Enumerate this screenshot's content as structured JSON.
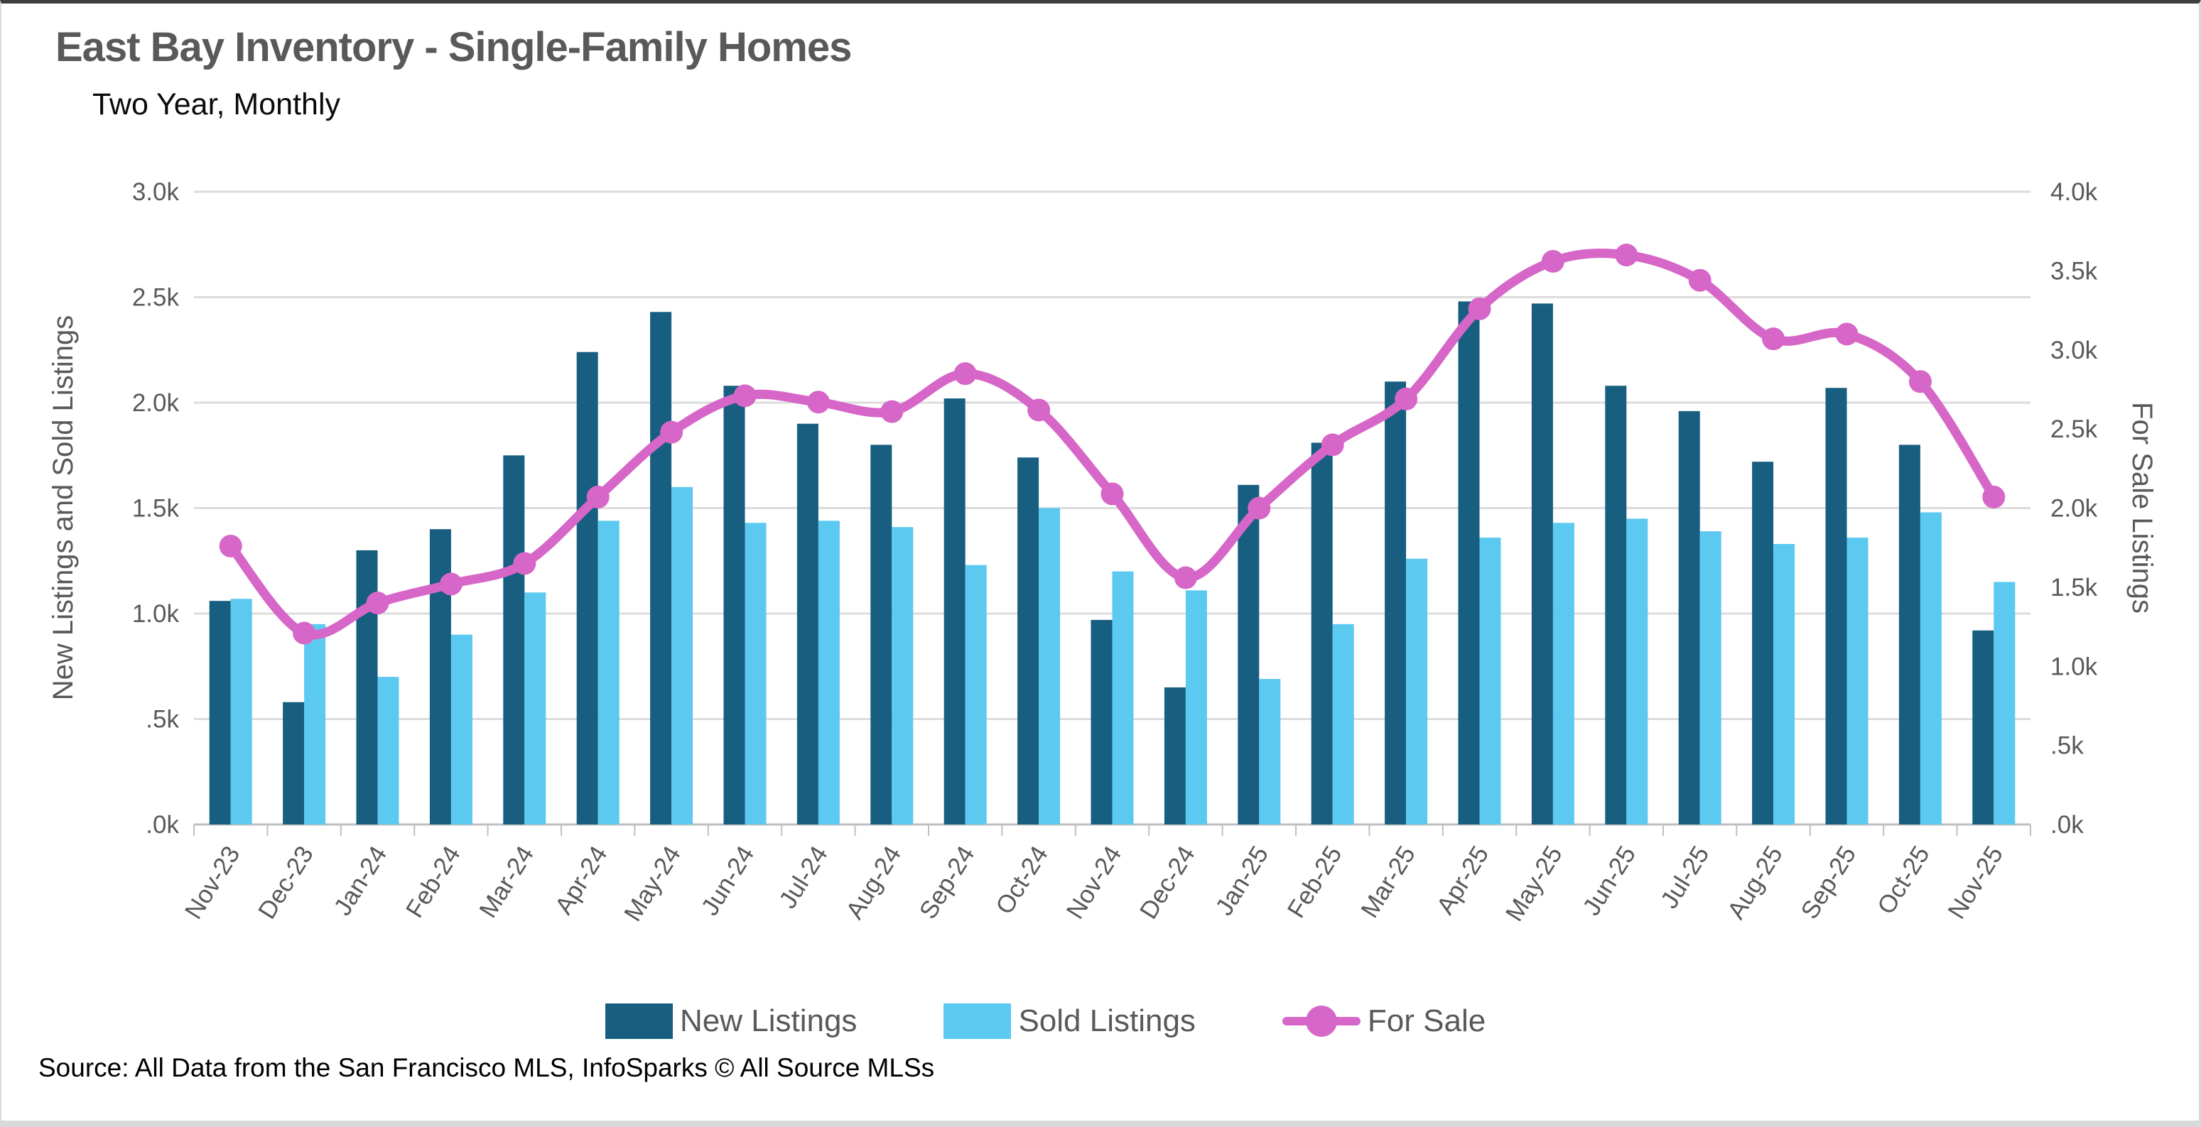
{
  "header": {
    "title": "East Bay Inventory - Single-Family Homes",
    "subtitle": "Two Year, Monthly"
  },
  "source_note": "Source: All Data from the San Francisco MLS, InfoSparks © All Source MLSs",
  "legend": {
    "position": "bottom",
    "items": [
      {
        "label": "New Listings",
        "color": "#175E80",
        "type": "bar"
      },
      {
        "label": "Sold Listings",
        "color": "#5CC9F0",
        "type": "bar"
      },
      {
        "label": "For Sale",
        "color": "#D666C8",
        "type": "line"
      }
    ]
  },
  "chart_data": {
    "type": "bar",
    "subtype": "grouped-bars-with-line",
    "title": "East Bay Inventory - Single-Family Homes",
    "subtitle": "Two Year, Monthly",
    "grid": true,
    "categories": [
      "Nov-23",
      "Dec-23",
      "Jan-24",
      "Feb-24",
      "Mar-24",
      "Apr-24",
      "May-24",
      "Jun-24",
      "Jul-24",
      "Aug-24",
      "Sep-24",
      "Oct-24",
      "Nov-24",
      "Dec-24",
      "Jan-25",
      "Feb-25",
      "Mar-25",
      "Apr-25",
      "May-25",
      "Jun-25",
      "Jul-25",
      "Aug-25",
      "Sep-25",
      "Oct-25",
      "Nov-25"
    ],
    "series": [
      {
        "name": "New Listings",
        "type": "bar",
        "axis": "left",
        "color": "#175E80",
        "unit": "thousands",
        "values": [
          1.06,
          0.58,
          1.3,
          1.4,
          1.75,
          2.24,
          2.43,
          2.08,
          1.9,
          1.8,
          2.02,
          1.74,
          0.97,
          0.65,
          1.61,
          1.81,
          2.1,
          2.48,
          2.47,
          2.08,
          1.96,
          1.72,
          2.07,
          1.8,
          0.92
        ]
      },
      {
        "name": "Sold Listings",
        "type": "bar",
        "axis": "left",
        "color": "#5CC9F0",
        "unit": "thousands",
        "values": [
          1.07,
          0.95,
          0.7,
          0.9,
          1.1,
          1.44,
          1.6,
          1.43,
          1.44,
          1.41,
          1.23,
          1.5,
          1.2,
          1.11,
          0.69,
          0.95,
          1.26,
          1.36,
          1.43,
          1.45,
          1.39,
          1.33,
          1.36,
          1.48,
          1.15
        ]
      },
      {
        "name": "For Sale",
        "type": "line",
        "axis": "right",
        "color": "#D666C8",
        "unit": "thousands",
        "markers": true,
        "smooth": true,
        "values": [
          1.76,
          1.21,
          1.4,
          1.52,
          1.65,
          2.07,
          2.48,
          2.71,
          2.67,
          2.61,
          2.85,
          2.62,
          2.09,
          1.56,
          2.0,
          2.4,
          2.69,
          3.26,
          3.56,
          3.6,
          3.44,
          3.07,
          3.1,
          2.8,
          2.07
        ]
      }
    ],
    "left_axis": {
      "title": "New Listings and Sold Listings",
      "min": 0,
      "max": 3.0,
      "step": 0.5,
      "tick_labels": [
        "3.0k",
        "2.5k",
        "2.0k",
        "1.5k",
        "1.0k",
        ".5k",
        ".0k"
      ]
    },
    "right_axis": {
      "title": "For Sale Listings",
      "min": 0,
      "max": 4.0,
      "step": 0.5,
      "tick_labels": [
        "4.0k",
        "3.5k",
        "3.0k",
        "2.5k",
        "2.0k",
        "1.5k",
        "1.0k",
        ".5k",
        ".0k"
      ]
    },
    "colors": {
      "gridline": "#DCDCDC",
      "axis_line": "#BFBFBF",
      "tick_text": "#595959",
      "title_text": "#595959"
    }
  }
}
